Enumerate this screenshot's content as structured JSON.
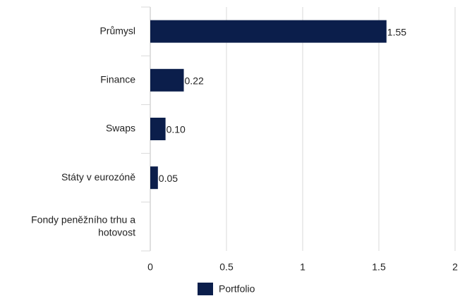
{
  "chart_data": {
    "type": "barh",
    "categories": [
      "Průmysl",
      "Finance",
      "Swaps",
      "Státy v eurozóně",
      "Fondy peněžního trhu a hotovost"
    ],
    "series": [
      {
        "name": "Portfolio",
        "color": "#0b1e4b",
        "values": [
          1.55,
          0.22,
          0.1,
          0.05,
          0
        ],
        "value_labels": [
          "1.55",
          "0.22",
          "0.10",
          "0.05",
          null
        ]
      }
    ],
    "xlim": [
      0,
      2
    ],
    "xticks": [
      0,
      0.5,
      1,
      1.5,
      2
    ],
    "grid": true,
    "legend": "bottom"
  }
}
